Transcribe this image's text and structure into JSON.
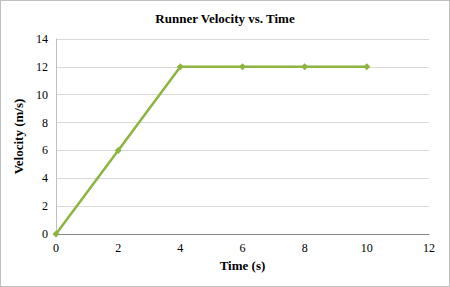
{
  "chart_data": {
    "type": "line",
    "title": "Runner Velocity vs. Time",
    "x_label": "Time (s)",
    "y_label": "Velocity (m/s)",
    "x": [
      0,
      2,
      4,
      6,
      8,
      10
    ],
    "values": [
      0,
      6,
      12,
      12,
      12,
      12
    ],
    "color": "#8cb43f",
    "marker": "diamond",
    "line_style": "solid",
    "xlim": [
      0,
      12
    ],
    "xticks": [
      0,
      2,
      4,
      6,
      8,
      10,
      12
    ],
    "ylim": [
      0,
      14
    ],
    "yticks": [
      0,
      2,
      4,
      6,
      8,
      10,
      12,
      14
    ],
    "grid": true
  }
}
